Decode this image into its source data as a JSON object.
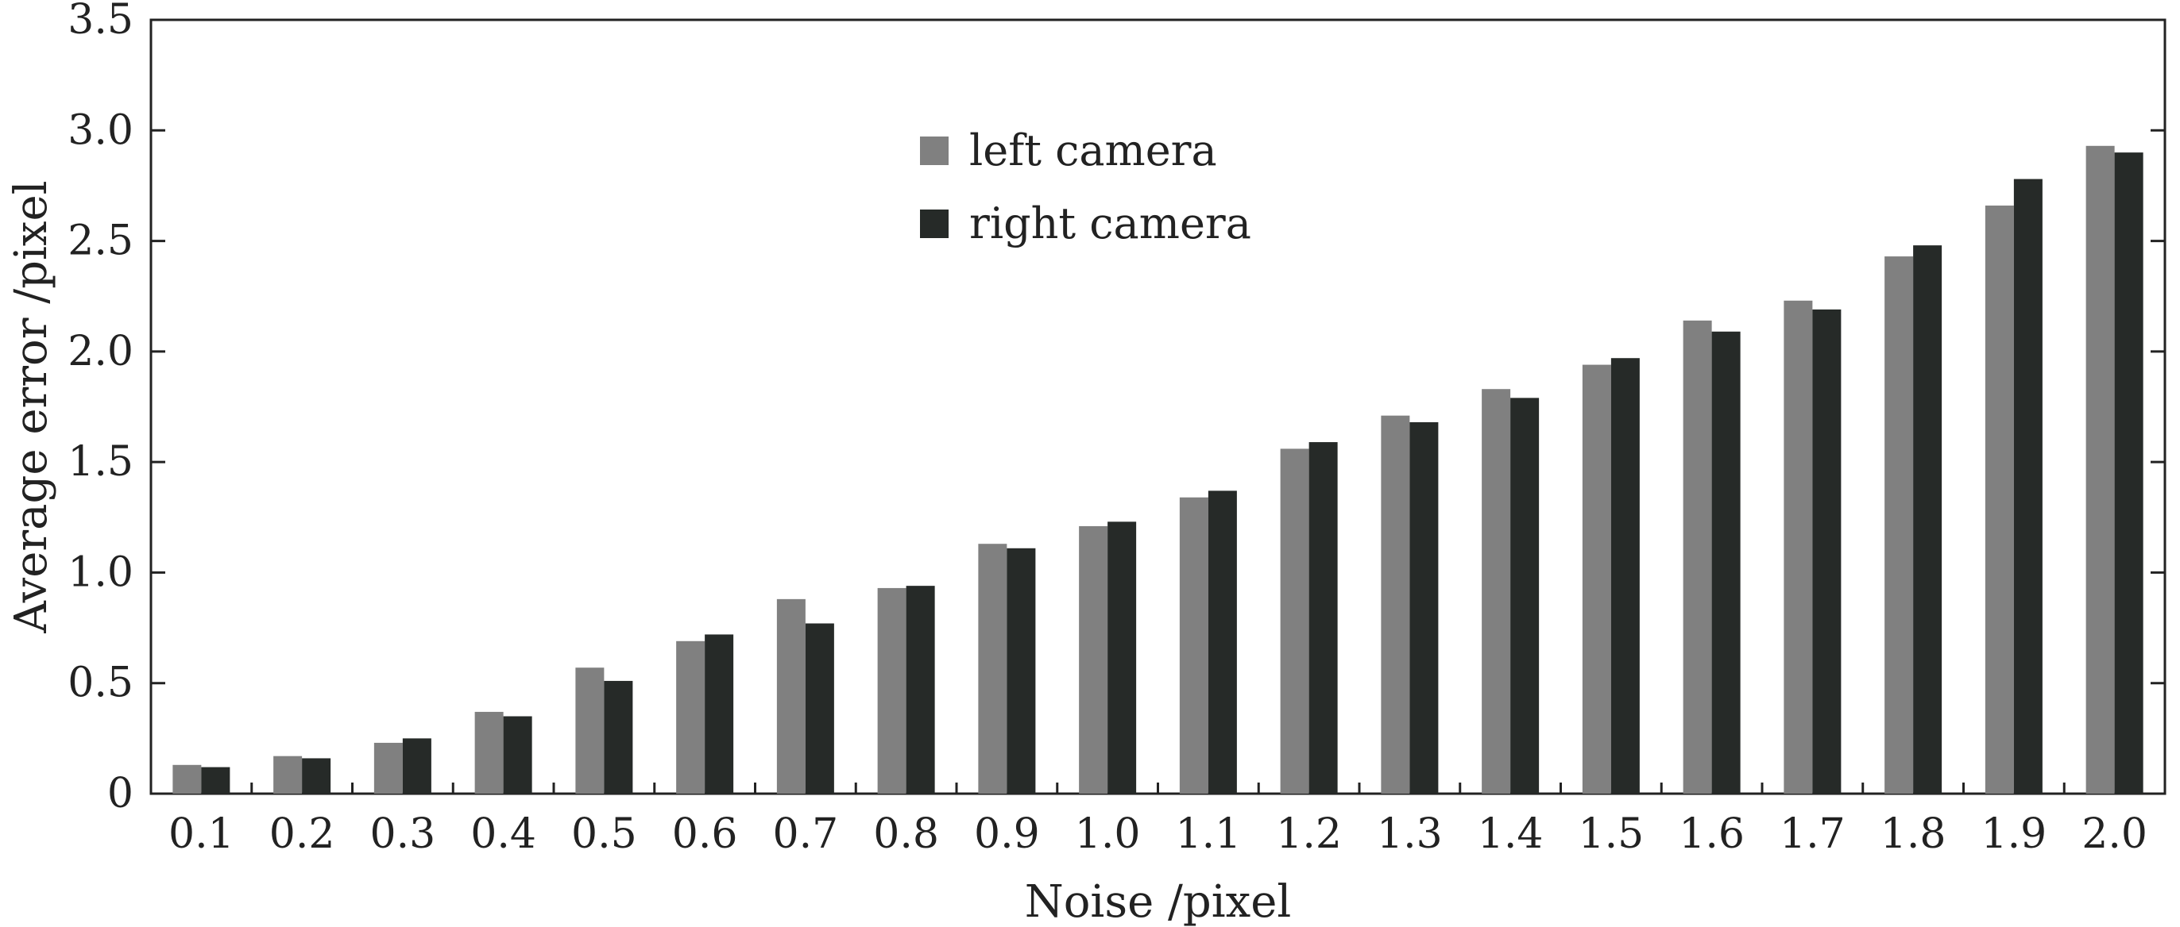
{
  "chart_data": {
    "type": "bar",
    "title": "",
    "xlabel": "Noise /pixel",
    "ylabel": "Average error /pixel",
    "categories": [
      "0.1",
      "0.2",
      "0.3",
      "0.4",
      "0.5",
      "0.6",
      "0.7",
      "0.8",
      "0.9",
      "1.0",
      "1.1",
      "1.2",
      "1.3",
      "1.4",
      "1.5",
      "1.6",
      "1.7",
      "1.8",
      "1.9",
      "2.0"
    ],
    "series": [
      {
        "name": "left camera",
        "color": "#808080",
        "values": [
          0.13,
          0.17,
          0.23,
          0.37,
          0.57,
          0.69,
          0.88,
          0.93,
          1.13,
          1.21,
          1.34,
          1.56,
          1.71,
          1.83,
          1.94,
          2.14,
          2.23,
          2.43,
          2.66,
          2.93
        ]
      },
      {
        "name": "right camera",
        "color": "#262a28",
        "values": [
          0.12,
          0.16,
          0.25,
          0.35,
          0.51,
          0.72,
          0.77,
          0.94,
          1.11,
          1.23,
          1.37,
          1.59,
          1.68,
          1.79,
          1.97,
          2.09,
          2.19,
          2.48,
          2.78,
          2.9
        ]
      }
    ],
    "ylim": [
      0,
      3.5
    ],
    "yticks": [
      "0",
      "0.5",
      "1.0",
      "1.5",
      "2.0",
      "2.5",
      "3.0",
      "3.5"
    ],
    "grid": false,
    "legend_position": "top-center"
  }
}
